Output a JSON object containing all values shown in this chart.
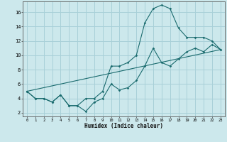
{
  "title": "",
  "xlabel": "Humidex (Indice chaleur)",
  "bg_color": "#cce8ec",
  "grid_color": "#a8d0d8",
  "line_color": "#1a6b6e",
  "xlim": [
    -0.5,
    23.5
  ],
  "ylim": [
    1.5,
    17.5
  ],
  "xticks": [
    0,
    1,
    2,
    3,
    4,
    5,
    6,
    7,
    8,
    9,
    10,
    11,
    12,
    13,
    14,
    15,
    16,
    17,
    18,
    19,
    20,
    21,
    22,
    23
  ],
  "yticks": [
    2,
    4,
    6,
    8,
    10,
    12,
    14,
    16
  ],
  "line1_x": [
    0,
    1,
    2,
    3,
    4,
    5,
    6,
    7,
    8,
    9,
    10,
    11,
    12,
    13,
    14,
    15,
    16,
    17,
    18,
    19,
    20,
    21,
    22,
    23
  ],
  "line1_y": [
    5.0,
    4.0,
    4.0,
    3.5,
    4.5,
    3.0,
    3.0,
    2.2,
    3.5,
    4.0,
    6.0,
    5.2,
    5.5,
    6.5,
    8.5,
    11.0,
    9.0,
    8.5,
    9.5,
    10.5,
    11.0,
    10.5,
    11.5,
    10.8
  ],
  "line2_x": [
    0,
    1,
    2,
    3,
    4,
    5,
    6,
    7,
    8,
    9,
    10,
    11,
    12,
    13,
    14,
    15,
    16,
    17,
    18,
    19,
    20,
    21,
    22,
    23
  ],
  "line2_y": [
    5.0,
    4.0,
    4.0,
    3.5,
    4.5,
    3.0,
    3.0,
    4.0,
    4.0,
    5.0,
    8.5,
    8.5,
    9.0,
    10.0,
    14.5,
    16.5,
    17.0,
    16.5,
    13.8,
    12.5,
    12.5,
    12.5,
    12.0,
    10.8
  ],
  "line3_x": [
    0,
    23
  ],
  "line3_y": [
    5.0,
    10.8
  ]
}
